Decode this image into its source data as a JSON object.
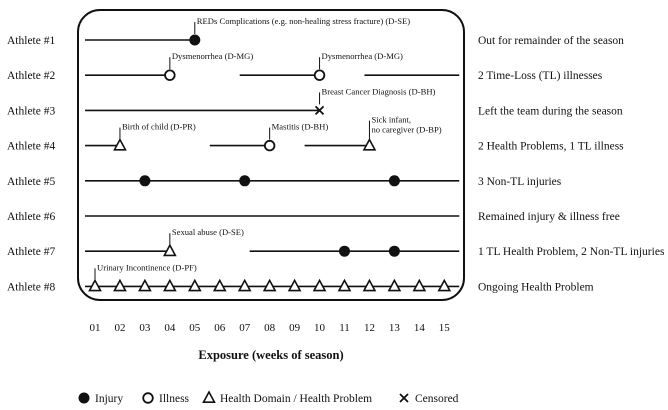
{
  "x_label": "Exposure (weeks of season)",
  "weeks": [
    "01",
    "02",
    "03",
    "04",
    "05",
    "06",
    "07",
    "08",
    "09",
    "10",
    "11",
    "12",
    "13",
    "14",
    "15"
  ],
  "legend": [
    {
      "symbol": "injury",
      "label": "Injury"
    },
    {
      "symbol": "illness",
      "label": "Illness"
    },
    {
      "symbol": "health",
      "label": "Health Domain / Health Problem"
    },
    {
      "symbol": "censored",
      "label": "Censored"
    }
  ],
  "athletes": [
    {
      "label": "Athlete #1",
      "outcome": "Out for remainder of the season",
      "segments": [
        [
          0.6,
          5
        ]
      ],
      "events": [
        {
          "week": 5,
          "type": "injury"
        }
      ],
      "annotations": [
        {
          "week": 5,
          "text": "REDs Complications (e.g. non-healing stress fracture) (D-SE)"
        }
      ]
    },
    {
      "label": "Athlete #2",
      "outcome": "2 Time-Loss (TL) illnesses",
      "segments": [
        [
          0.6,
          4
        ],
        [
          6.8,
          10
        ],
        [
          11.8,
          15.6
        ]
      ],
      "events": [
        {
          "week": 4,
          "type": "illness"
        },
        {
          "week": 10,
          "type": "illness"
        }
      ],
      "annotations": [
        {
          "week": 4,
          "text": "Dysmenorrhea (D-MG)"
        },
        {
          "week": 10,
          "text": "Dysmenorrhea (D-MG)"
        }
      ]
    },
    {
      "label": "Athlete #3",
      "outcome": "Left the team during the season",
      "segments": [
        [
          0.6,
          10
        ]
      ],
      "events": [
        {
          "week": 10,
          "type": "censored"
        }
      ],
      "annotations": [
        {
          "week": 10,
          "text": "Breast Cancer Diagnosis (D-BH)"
        }
      ]
    },
    {
      "label": "Athlete #4",
      "outcome": "2 Health Problems, 1 TL  illness",
      "segments": [
        [
          0.6,
          2
        ],
        [
          5.6,
          8
        ],
        [
          9.4,
          12
        ]
      ],
      "events": [
        {
          "week": 2,
          "type": "health"
        },
        {
          "week": 8,
          "type": "illness"
        },
        {
          "week": 12,
          "type": "health"
        }
      ],
      "annotations": [
        {
          "week": 2,
          "text": "Birth of child (D-PR)"
        },
        {
          "week": 8,
          "text": "Mastitis (D-BH)"
        },
        {
          "week": 12,
          "text": "Sick infant,",
          "text2": "no caregiver (D-BP)"
        }
      ]
    },
    {
      "label": "Athlete #5",
      "outcome": "3 Non-TL injuries",
      "segments": [
        [
          0.6,
          15.6
        ]
      ],
      "events": [
        {
          "week": 3,
          "type": "injury"
        },
        {
          "week": 7,
          "type": "injury"
        },
        {
          "week": 13,
          "type": "injury"
        }
      ],
      "annotations": []
    },
    {
      "label": "Athlete #6",
      "outcome": "Remained injury & illness free",
      "segments": [
        [
          0.6,
          15.6
        ]
      ],
      "events": [],
      "annotations": []
    },
    {
      "label": "Athlete #7",
      "outcome": "1 TL Health Problem, 2 Non-TL injuries",
      "segments": [
        [
          0.6,
          4
        ],
        [
          7.2,
          15.6
        ]
      ],
      "events": [
        {
          "week": 4,
          "type": "health"
        },
        {
          "week": 11,
          "type": "injury"
        },
        {
          "week": 13,
          "type": "injury"
        }
      ],
      "annotations": [
        {
          "week": 4,
          "text": "Sexual abuse (D-SE)"
        }
      ]
    },
    {
      "label": "Athlete #8",
      "outcome": "Ongoing Health Problem",
      "segments": [
        [
          0.6,
          15.6
        ]
      ],
      "events": [
        {
          "week": 1,
          "type": "health"
        },
        {
          "week": 2,
          "type": "health"
        },
        {
          "week": 3,
          "type": "health"
        },
        {
          "week": 4,
          "type": "health"
        },
        {
          "week": 5,
          "type": "health"
        },
        {
          "week": 6,
          "type": "health"
        },
        {
          "week": 7,
          "type": "health"
        },
        {
          "week": 8,
          "type": "health"
        },
        {
          "week": 9,
          "type": "health"
        },
        {
          "week": 10,
          "type": "health"
        },
        {
          "week": 11,
          "type": "health"
        },
        {
          "week": 12,
          "type": "health"
        },
        {
          "week": 13,
          "type": "health"
        },
        {
          "week": 14,
          "type": "health"
        },
        {
          "week": 15,
          "type": "health"
        }
      ],
      "annotations": [
        {
          "week": 1,
          "text": "Urinary Incontinence (D-PF)"
        }
      ]
    }
  ]
}
